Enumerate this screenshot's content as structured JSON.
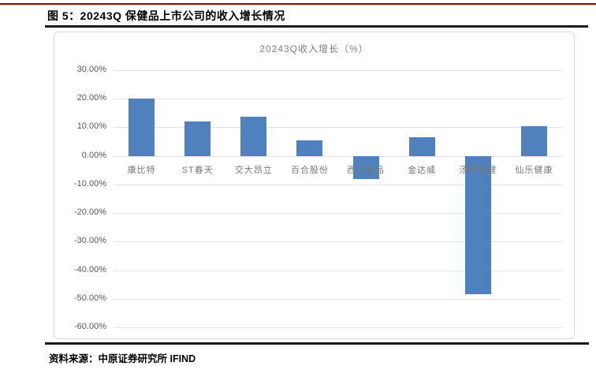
{
  "page": {
    "header_title": "图 5：20243Q 保健品上市公司的收入增长情况",
    "footer_label": "资料来源：",
    "footer_source": "中原证券研究所  IFIND",
    "accent_line_color": "#990000",
    "rule_color": "#1a1a1a"
  },
  "chart_data": {
    "type": "bar",
    "title": "20243Q收入增长（%）",
    "categories": [
      "康比特",
      "ST春天",
      "交大昂立",
      "百合股份",
      "西王食品",
      "金达威",
      "汤臣倍健",
      "仙乐健康"
    ],
    "values": [
      20.0,
      12.0,
      13.8,
      5.4,
      -8.2,
      6.6,
      -48.5,
      10.5
    ],
    "y_ticks": [
      "30.00%",
      "20.00%",
      "10.00%",
      "0.00%",
      "-10.00%",
      "-20.00%",
      "-30.00%",
      "-40.00%",
      "-50.00%",
      "-60.00%"
    ],
    "y_tick_values": [
      30,
      20,
      10,
      0,
      -10,
      -20,
      -30,
      -40,
      -50,
      -60
    ],
    "ylim": [
      -60,
      30
    ],
    "xlabel": "",
    "ylabel": "",
    "grid": true,
    "legend_position": "none",
    "bar_color": "#4e81bd",
    "gridline_color": "#e4e4e4"
  }
}
